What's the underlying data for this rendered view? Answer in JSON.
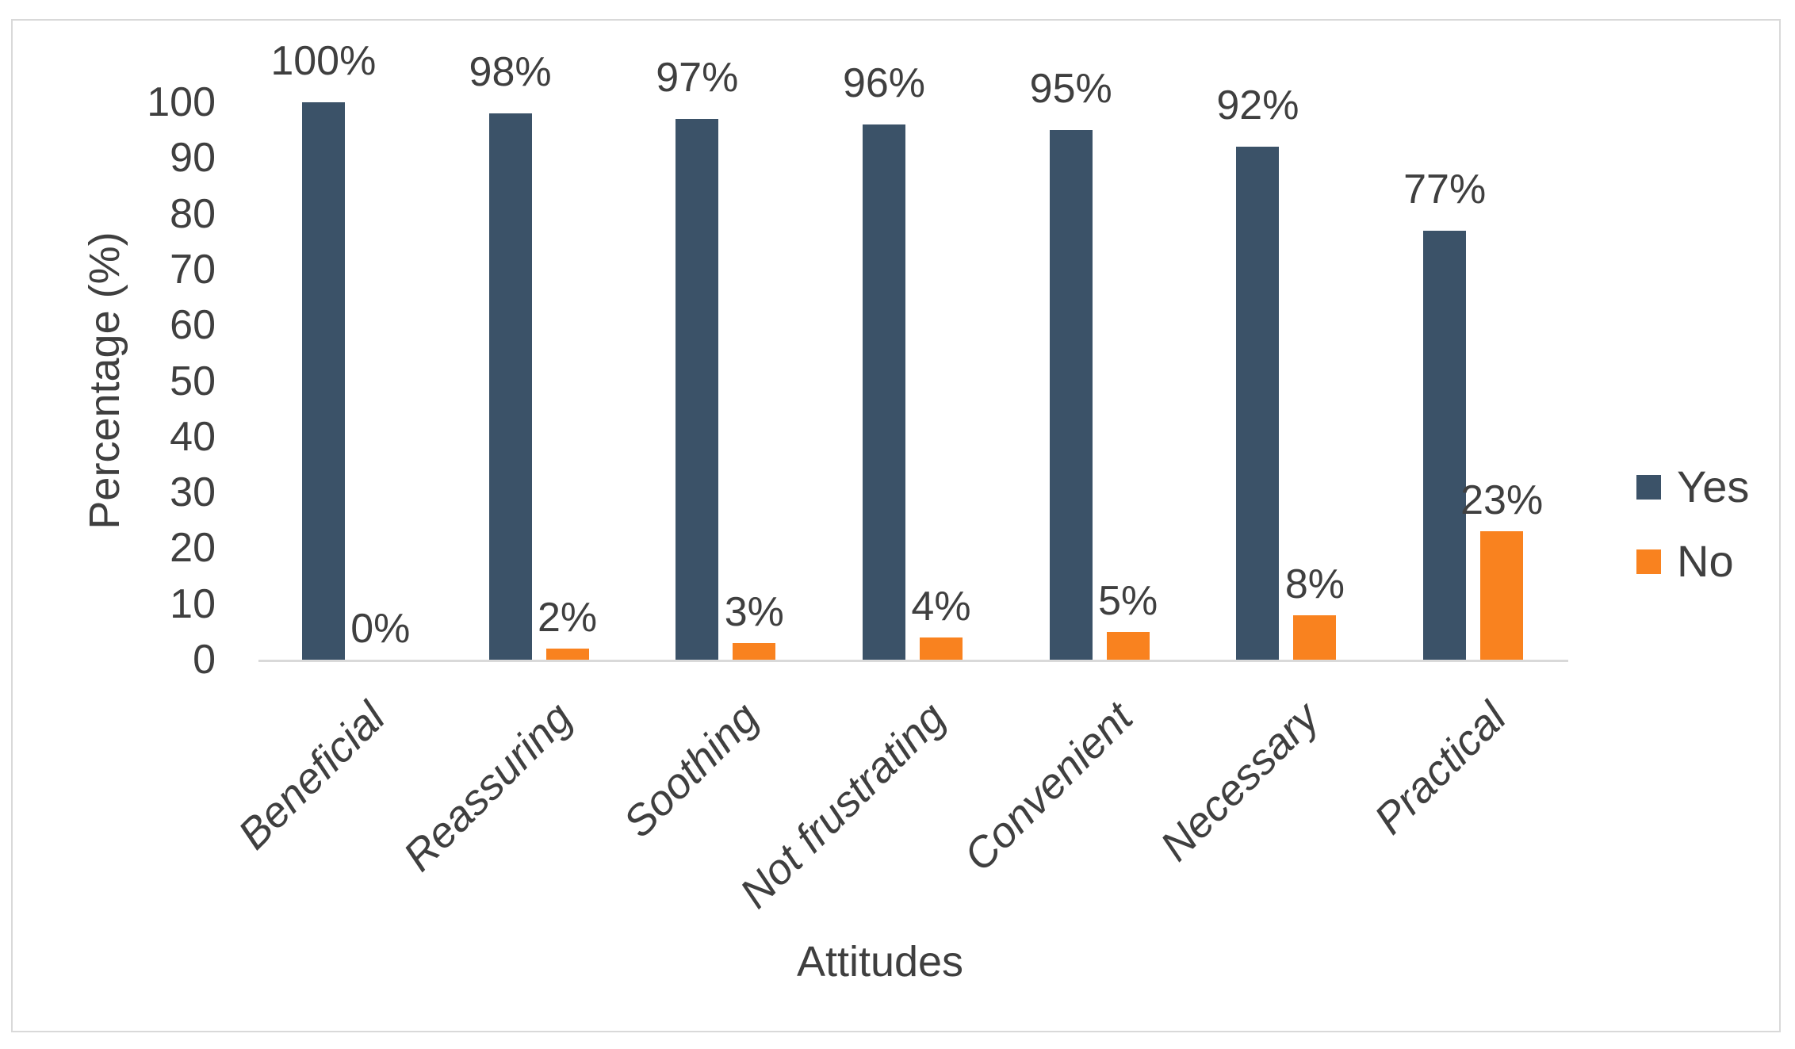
{
  "chart_data": {
    "type": "bar",
    "categories": [
      "Beneficial",
      "Reassuring",
      "Soothing",
      "Not frustrating",
      "Convenient",
      "Necessary",
      "Practical"
    ],
    "series": [
      {
        "name": "Yes",
        "color": "#3B5268",
        "values": [
          100,
          98,
          97,
          96,
          95,
          92,
          77
        ],
        "labels": [
          "100%",
          "98%",
          "97%",
          "96%",
          "95%",
          "92%",
          "77%"
        ]
      },
      {
        "name": "No",
        "color": "#F9821F",
        "values": [
          0,
          2,
          3,
          4,
          5,
          8,
          23
        ],
        "labels": [
          "0%",
          "2%",
          "3%",
          "4%",
          "5%",
          "8%",
          "23%"
        ]
      }
    ],
    "xlabel": "Attitudes",
    "ylabel": "Percentage (%)",
    "ylim": [
      0,
      100
    ],
    "yticks": [
      0,
      10,
      20,
      30,
      40,
      50,
      60,
      70,
      80,
      90,
      100
    ],
    "grid": false,
    "legend_position": "right"
  },
  "colors": {
    "background": "#FFFFFF",
    "frame_border": "#D9D9D9",
    "axis_line": "#D9D9D9",
    "text": "#3F3F3F"
  }
}
